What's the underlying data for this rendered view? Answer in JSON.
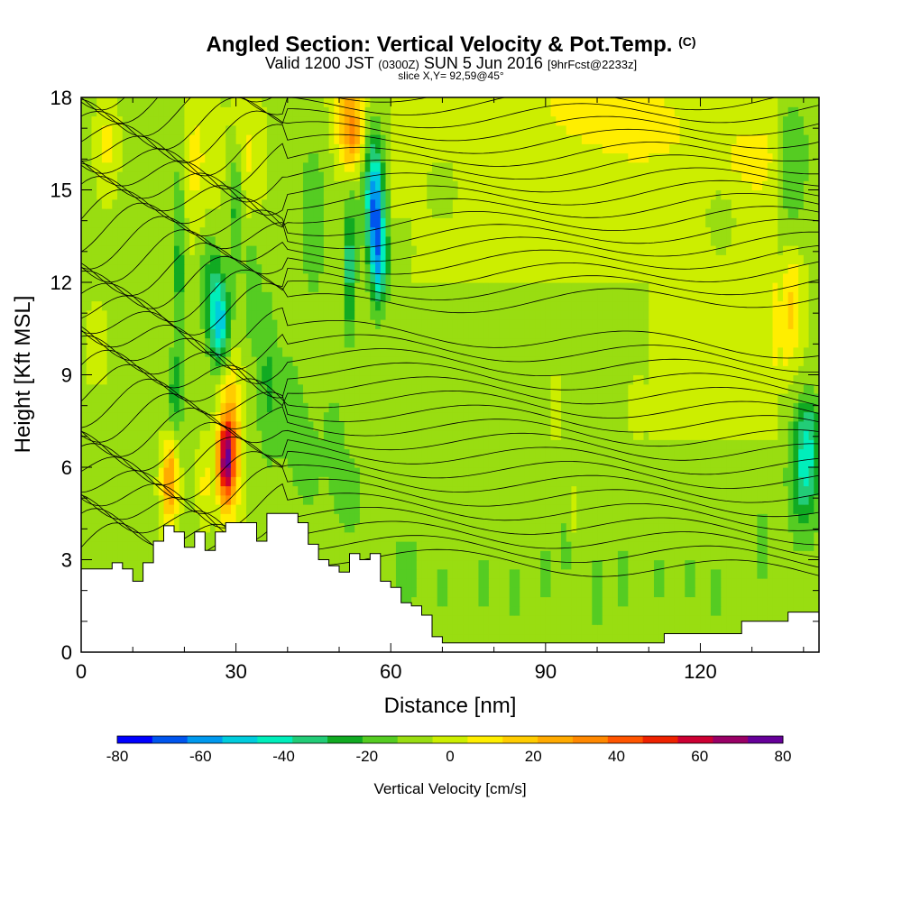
{
  "header": {
    "title": "Angled Section: Vertical Velocity & Pot.Temp.",
    "title_suffix": "(C)",
    "valid_prefix": "Valid 1200 JST",
    "valid_zone": "(0300Z)",
    "valid_date": "SUN 5 Jun 2016",
    "valid_fcst": "[9hrFcst@2233z]",
    "slice": "slice X,Y= 92,59@45°"
  },
  "chart_data": {
    "type": "heatmap",
    "xlabel": "Distance [nm]",
    "ylabel": "Height [Kft MSL]",
    "xlim": [
      0,
      143
    ],
    "ylim": [
      0,
      18
    ],
    "x_ticks": [
      0,
      30,
      60,
      90,
      120
    ],
    "y_ticks": [
      0,
      3,
      6,
      9,
      12,
      15,
      18
    ],
    "terrain": [
      [
        0,
        2.7
      ],
      [
        4,
        2.7
      ],
      [
        6,
        2.9
      ],
      [
        8,
        2.7
      ],
      [
        10,
        2.3
      ],
      [
        12,
        2.9
      ],
      [
        14,
        3.6
      ],
      [
        16,
        4.1
      ],
      [
        18,
        3.9
      ],
      [
        20,
        3.4
      ],
      [
        22,
        3.9
      ],
      [
        24,
        3.3
      ],
      [
        26,
        3.9
      ],
      [
        28,
        4.2
      ],
      [
        32,
        4.2
      ],
      [
        34,
        3.6
      ],
      [
        36,
        4.5
      ],
      [
        40,
        4.5
      ],
      [
        42,
        4.2
      ],
      [
        44,
        3.5
      ],
      [
        46,
        3.0
      ],
      [
        48,
        2.8
      ],
      [
        50,
        2.6
      ],
      [
        52,
        3.2
      ],
      [
        54,
        3.0
      ],
      [
        56,
        3.2
      ],
      [
        58,
        2.3
      ],
      [
        60,
        2.1
      ],
      [
        62,
        1.6
      ],
      [
        64,
        1.5
      ],
      [
        66,
        1.2
      ],
      [
        68,
        0.5
      ],
      [
        70,
        0.3
      ],
      [
        110,
        0.3
      ],
      [
        113,
        0.6
      ],
      [
        126,
        0.6
      ],
      [
        128,
        1.0
      ],
      [
        135,
        1.0
      ],
      [
        137,
        1.3
      ],
      [
        143,
        1.3
      ]
    ],
    "colorbar": {
      "label": "Vertical Velocity [cm/s]",
      "min": -80,
      "max": 80,
      "tick_labels": [
        -80,
        -60,
        -40,
        -20,
        0,
        20,
        40,
        60,
        80
      ],
      "colors": [
        "#0000ff",
        "#0055ee",
        "#0099ee",
        "#00ccdd",
        "#00eebb",
        "#22cc77",
        "#11aa22",
        "#55cc22",
        "#99dd11",
        "#ccee00",
        "#ffee00",
        "#ffcc00",
        "#ffaa00",
        "#ff8800",
        "#ff5500",
        "#ee2200",
        "#cc0033",
        "#990066",
        "#660099"
      ]
    }
  }
}
